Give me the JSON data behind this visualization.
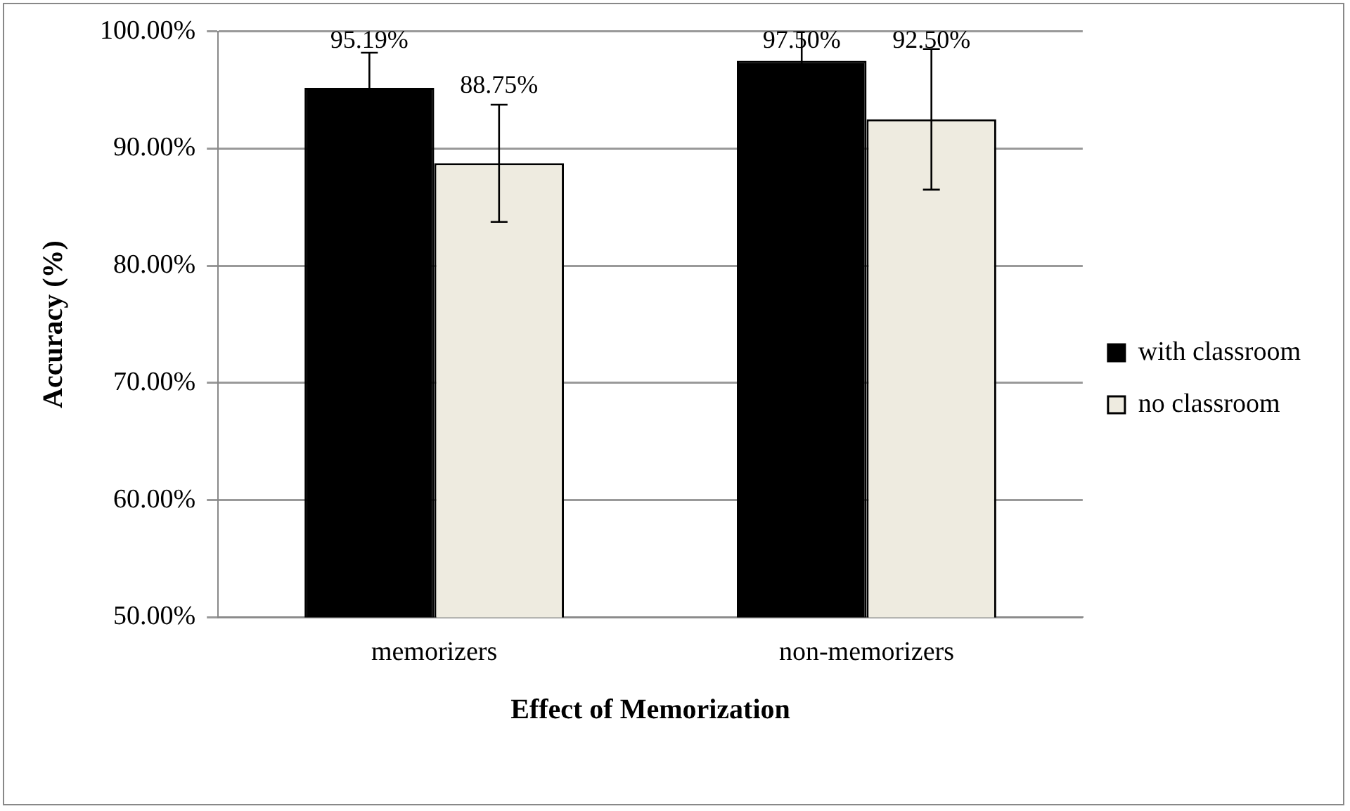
{
  "chart_data": {
    "type": "bar",
    "xlabel": "Effect of Memorization",
    "ylabel": "Accuracy (%)",
    "categories": [
      "memorizers",
      "non-memorizers"
    ],
    "series": [
      {
        "name": "with classroom",
        "color": "#000000",
        "values": [
          95.19,
          97.5
        ],
        "errors": [
          3.0,
          2.5
        ],
        "value_labels": [
          "95.19%",
          "97.50%"
        ]
      },
      {
        "name": "no classroom",
        "color": "#eeebe0",
        "values": [
          88.75,
          92.5
        ],
        "errors": [
          5.0,
          6.0
        ],
        "value_labels": [
          "88.75%",
          "92.50%"
        ]
      }
    ],
    "ylim": [
      50,
      100
    ],
    "yticks": [
      {
        "value": 50,
        "label": "50.00%"
      },
      {
        "value": 60,
        "label": "60.00%"
      },
      {
        "value": 70,
        "label": "70.00%"
      },
      {
        "value": 80,
        "label": "80.00%"
      },
      {
        "value": 90,
        "label": "90.00%"
      },
      {
        "value": 100,
        "label": "100.00%"
      }
    ],
    "grid": "y",
    "legend": "right"
  }
}
